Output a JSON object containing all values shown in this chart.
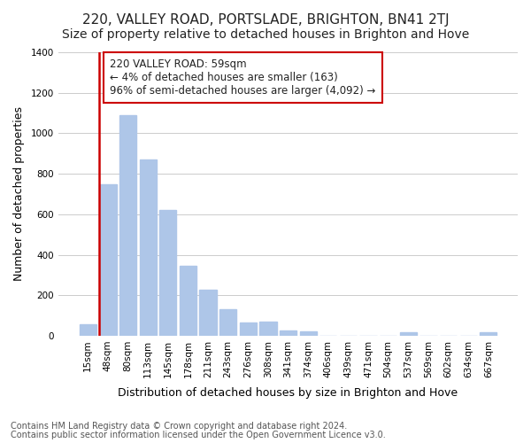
{
  "title": "220, VALLEY ROAD, PORTSLADE, BRIGHTON, BN41 2TJ",
  "subtitle": "Size of property relative to detached houses in Brighton and Hove",
  "xlabel": "Distribution of detached houses by size in Brighton and Hove",
  "ylabel": "Number of detached properties",
  "footnote1": "Contains HM Land Registry data © Crown copyright and database right 2024.",
  "footnote2": "Contains public sector information licensed under the Open Government Licence v3.0.",
  "annotation_title": "220 VALLEY ROAD: 59sqm",
  "annotation_line1": "← 4% of detached houses are smaller (163)",
  "annotation_line2": "96% of semi-detached houses are larger (4,092) →",
  "bar_labels": [
    "15sqm",
    "48sqm",
    "80sqm",
    "113sqm",
    "145sqm",
    "178sqm",
    "211sqm",
    "243sqm",
    "276sqm",
    "308sqm",
    "341sqm",
    "374sqm",
    "406sqm",
    "439sqm",
    "471sqm",
    "504sqm",
    "537sqm",
    "569sqm",
    "602sqm",
    "634sqm",
    "667sqm"
  ],
  "bar_values": [
    55,
    750,
    1090,
    870,
    620,
    345,
    225,
    130,
    65,
    70,
    25,
    20,
    0,
    0,
    0,
    0,
    15,
    0,
    0,
    0,
    15
  ],
  "bar_color": "#aec6e8",
  "vline_color": "#cc0000",
  "vline_x": 0.575,
  "ylim": [
    0,
    1400
  ],
  "yticks": [
    0,
    200,
    400,
    600,
    800,
    1000,
    1200,
    1400
  ],
  "background_color": "#ffffff",
  "grid_color": "#cccccc",
  "annotation_box_color": "#ffffff",
  "annotation_box_edge": "#cc0000",
  "title_fontsize": 11,
  "subtitle_fontsize": 10,
  "axis_label_fontsize": 9,
  "tick_fontsize": 7.5,
  "annotation_fontsize": 8.5,
  "footnote_fontsize": 7
}
